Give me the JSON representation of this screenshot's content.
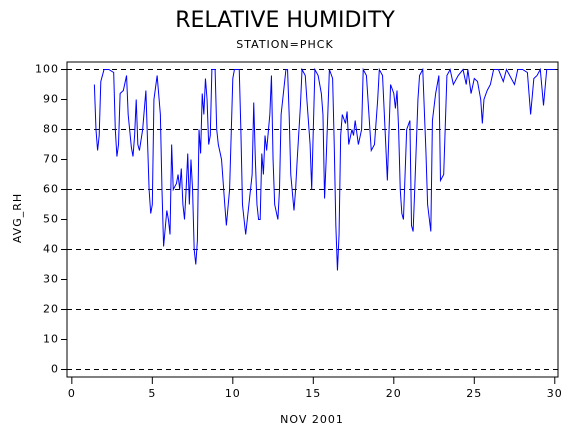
{
  "chart_data": {
    "type": "line",
    "title": "RELATIVE HUMIDITY",
    "subtitle": "STATION=PHCK",
    "x_label": "NOV 2001",
    "y_label": "AVG_RH",
    "color": "#0000ff",
    "grid": true,
    "xlim": [
      -0.3,
      30.2
    ],
    "ylim": [
      -2.5,
      102.5
    ],
    "xticks": [
      0,
      5,
      10,
      15,
      20,
      25,
      30
    ],
    "yticks": [
      0,
      10,
      20,
      30,
      40,
      50,
      60,
      70,
      80,
      90,
      100
    ],
    "x": [
      1.4,
      1.5,
      1.6,
      1.7,
      1.8,
      2.0,
      2.3,
      2.6,
      2.7,
      2.8,
      2.9,
      3.0,
      3.2,
      3.4,
      3.5,
      3.7,
      3.8,
      3.9,
      4.0,
      4.1,
      4.2,
      4.4,
      4.6,
      4.8,
      4.9,
      5.0,
      5.1,
      5.3,
      5.5,
      5.6,
      5.7,
      5.8,
      5.9,
      6.0,
      6.1,
      6.2,
      6.3,
      6.5,
      6.6,
      6.7,
      6.8,
      6.9,
      7.0,
      7.1,
      7.2,
      7.3,
      7.4,
      7.5,
      7.6,
      7.7,
      7.8,
      7.9,
      8.0,
      8.1,
      8.2,
      8.3,
      8.4,
      8.5,
      8.6,
      8.7,
      8.9,
      9.0,
      9.1,
      9.3,
      9.5,
      9.6,
      9.8,
      10.0,
      10.1,
      10.4,
      10.5,
      10.6,
      10.8,
      11.0,
      11.2,
      11.3,
      11.4,
      11.5,
      11.6,
      11.7,
      11.8,
      11.9,
      12.0,
      12.1,
      12.3,
      12.4,
      12.5,
      12.6,
      12.8,
      12.9,
      13.0,
      13.1,
      13.3,
      13.4,
      13.5,
      13.6,
      13.8,
      13.9,
      14.0,
      14.2,
      14.3,
      14.5,
      14.6,
      14.8,
      14.9,
      15.0,
      15.1,
      15.3,
      15.5,
      15.6,
      15.7,
      15.8,
      16.0,
      16.2,
      16.3,
      16.4,
      16.5,
      16.6,
      16.7,
      16.8,
      17.0,
      17.1,
      17.2,
      17.4,
      17.5,
      17.6,
      17.8,
      18.0,
      18.1,
      18.3,
      18.6,
      18.8,
      19.0,
      19.1,
      19.3,
      19.5,
      19.6,
      19.8,
      20.0,
      20.1,
      20.2,
      20.3,
      20.4,
      20.5,
      20.6,
      20.8,
      21.0,
      21.1,
      21.2,
      21.3,
      21.5,
      21.6,
      21.8,
      22.0,
      22.1,
      22.3,
      22.4,
      22.6,
      22.8,
      22.9,
      23.1,
      23.3,
      23.5,
      23.7,
      24.0,
      24.3,
      24.5,
      24.6,
      24.8,
      25.0,
      25.2,
      25.4,
      25.5,
      25.6,
      25.8,
      26.0,
      26.2,
      26.5,
      26.8,
      27.0,
      27.2,
      27.5,
      27.7,
      28.0,
      28.3,
      28.5,
      28.7,
      28.9,
      29.1,
      29.3,
      29.5,
      29.8,
      30.0
    ],
    "values": [
      95,
      80,
      73,
      78,
      96,
      100,
      100,
      99,
      80,
      71,
      75,
      92,
      93,
      98,
      85,
      74,
      71,
      78,
      90,
      75,
      73,
      80,
      93,
      60,
      52,
      55,
      90,
      98,
      85,
      60,
      41,
      47,
      53,
      50,
      45,
      75,
      60,
      62,
      65,
      60,
      67,
      55,
      50,
      60,
      72,
      55,
      70,
      60,
      40,
      35,
      43,
      80,
      72,
      92,
      85,
      97,
      90,
      75,
      78,
      100,
      100,
      80,
      75,
      70,
      55,
      48,
      60,
      97,
      100,
      100,
      80,
      55,
      45,
      55,
      65,
      89,
      70,
      55,
      50,
      50,
      72,
      65,
      78,
      73,
      85,
      98,
      70,
      55,
      50,
      60,
      85,
      90,
      100,
      100,
      85,
      65,
      53,
      60,
      70,
      88,
      100,
      98,
      90,
      75,
      60,
      80,
      100,
      98,
      92,
      85,
      57,
      70,
      100,
      97,
      75,
      48,
      33,
      45,
      78,
      85,
      82,
      86,
      75,
      80,
      78,
      83,
      75,
      80,
      100,
      98,
      73,
      75,
      90,
      100,
      98,
      75,
      63,
      95,
      92,
      87,
      93,
      80,
      60,
      52,
      50,
      80,
      83,
      48,
      46,
      60,
      90,
      98,
      100,
      72,
      55,
      46,
      83,
      92,
      98,
      63,
      65,
      98,
      100,
      95,
      98,
      100,
      95,
      100,
      92,
      97,
      96,
      90,
      82,
      90,
      93,
      95,
      100,
      100,
      96,
      100,
      98,
      95,
      100,
      100,
      99,
      85,
      97,
      98,
      100,
      88,
      100,
      100,
      100
    ]
  }
}
